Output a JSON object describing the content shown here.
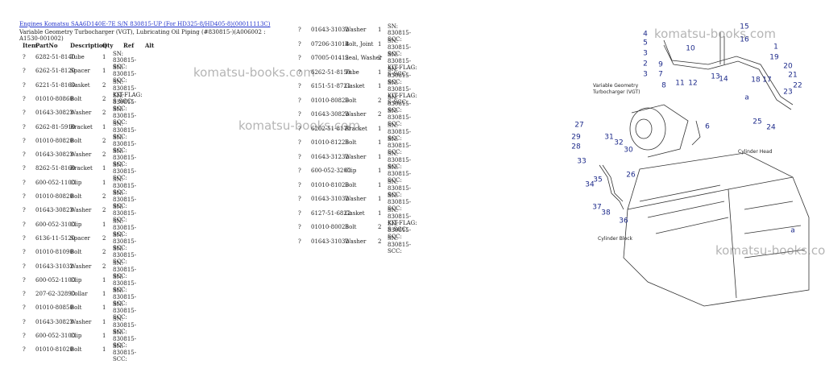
{
  "header": {
    "link": "Engines Komatsu SAA6D140E-7E S/N 830815-UP (For HD325-8/HD405-8)(00011113C)",
    "title": "Variable Geometry Turbocharger (VGT), Lubricating Oil Piping (#830815-)(A006002 : A1530-001002)"
  },
  "columns": [
    "Item",
    "PartNo",
    "Description",
    "Qty",
    "Ref",
    "Alt"
  ],
  "tables": [
    {
      "rows": [
        [
          "?",
          "6282-51-8140",
          "Tube",
          1,
          "SN: 830815-SCC:"
        ],
        [
          "?",
          "6262-51-8120",
          "Spacer",
          1,
          "SN: 830815-SCC:"
        ],
        [
          "?",
          "6221-51-8160",
          "Gasket",
          2,
          "SN: 830815-KIT-FLAG: S-SCC:"
        ],
        [
          "?",
          "01010-80860",
          "Bolt",
          2,
          "SN: 830815-SCC:"
        ],
        [
          "?",
          "01643-30823",
          "Washer",
          2,
          "SN: 830815-SCC:"
        ],
        [
          "?",
          "6262-81-5910",
          "Bracket",
          1,
          "SN: 830815-SCC:"
        ],
        [
          "?",
          "01010-80820",
          "Bolt",
          2,
          "SN: 830815-SCC:"
        ],
        [
          "?",
          "01643-30823",
          "Washer",
          2,
          "SN: 830815-SCC:"
        ],
        [
          "?",
          "8262-51-8160",
          "Bracket",
          1,
          "SN: 830815-SCC:"
        ],
        [
          "?",
          "600-052-1100",
          "Clip",
          1,
          "SN: 830815-SCC:"
        ],
        [
          "?",
          "01010-80820",
          "Bolt",
          2,
          "SN: 830815-SCC:"
        ],
        [
          "?",
          "01643-30823",
          "Washer",
          2,
          "SN: 830815-SCC:"
        ],
        [
          "?",
          "600-052-3100",
          "Clip",
          1,
          "SN: 830815-SCC:"
        ],
        [
          "?",
          "6136-11-5120",
          "Spacer",
          2,
          "SN: 830815-SCC:"
        ],
        [
          "?",
          "01010-81090",
          "Bolt",
          2,
          "SN: 830815-SCC:"
        ],
        [
          "?",
          "01643-31032",
          "Washer",
          2,
          "SN: 830815-SCC:"
        ],
        [
          "?",
          "600-052-1100",
          "Clip",
          1,
          "SN: 830815-SCC:"
        ],
        [
          "?",
          "207-62-32890",
          "Collar",
          1,
          "SN: 830815-SCC:"
        ],
        [
          "?",
          "01010-80850",
          "Bolt",
          1,
          "SN: 830815-SCC:"
        ],
        [
          "?",
          "01643-30823",
          "Washer",
          1,
          "SN: 830815-SCC:"
        ],
        [
          "?",
          "600-052-3100",
          "Clip",
          1,
          "SN: 830815-SCC:"
        ],
        [
          "?",
          "01010-81020",
          "Bolt",
          1,
          "SN: 830815-SCC:"
        ]
      ]
    },
    {
      "rows": [
        [
          "?",
          "01643-31032",
          "Washer",
          1,
          "SN: 830815-SCC:"
        ],
        [
          "?",
          "07206-31014",
          "Bolt, Joint",
          1,
          "SN: 830815-SCC:"
        ],
        [
          "?",
          "07005-01412",
          "Seal, Washer",
          2,
          "SN: 830815-KIT-FLAG: S-SCC:"
        ],
        [
          "?",
          "6262-51-8150",
          "Tube",
          1,
          "SN: 830815-SCC:"
        ],
        [
          "?",
          "6151-51-8721",
          "Gasket",
          1,
          "SN: 830815-KIT-FLAG: S-SCC:"
        ],
        [
          "?",
          "01010-80820",
          "Bolt",
          2,
          "SN: 830815-SCC:"
        ],
        [
          "?",
          "01643-30823",
          "Washer",
          2,
          "SN: 830815-SCC:"
        ],
        [
          "?",
          "6262-51-8170",
          "Bracket",
          1,
          "SN: 830815-SCC:"
        ],
        [
          "?",
          "01010-81225",
          "Bolt",
          1,
          "SN: 830815-SCC:"
        ],
        [
          "?",
          "01643-31232",
          "Washer",
          1,
          "SN: 830815-SCC:"
        ],
        [
          "?",
          "600-052-3200",
          "Clip",
          1,
          "SN: 830815-SCC:"
        ],
        [
          "?",
          "01010-81020",
          "Bolt",
          1,
          "SN: 830815-SCC:"
        ],
        [
          "?",
          "01643-31032",
          "Washer",
          1,
          "SN: 830815-SCC:"
        ],
        [
          "?",
          "6127-51-6822",
          "Gasket",
          1,
          "SN: 830815-KIT-FLAG: S-SCC:"
        ],
        [
          "?",
          "01010-80025",
          "Bolt",
          2,
          "SN: 830815-SCC:"
        ],
        [
          "?",
          "01643-31032",
          "Washer",
          2,
          "SN: 830815-SCC:"
        ]
      ]
    }
  ],
  "watermarks": [
    "komatsu-books.com",
    "komatsu-books.com",
    "komatsu-books.com",
    "komatsu-books.com"
  ],
  "diagram": {
    "callouts": [
      "4",
      "5",
      "3",
      "2",
      "3",
      "10",
      "11",
      "12",
      "13",
      "9",
      "7",
      "8",
      "15",
      "16",
      "1",
      "19",
      "20",
      "21",
      "22",
      "17",
      "18",
      "14",
      "23",
      "25",
      "24",
      "6",
      "27",
      "29",
      "28",
      "31",
      "32",
      "30",
      "33",
      "34",
      "35",
      "26",
      "37",
      "38",
      "36",
      "a",
      "a"
    ],
    "labels": [
      "Variable Geometry",
      "Turbocharger (VGT)",
      "Cylinder Head",
      "Cylinder Block"
    ]
  }
}
